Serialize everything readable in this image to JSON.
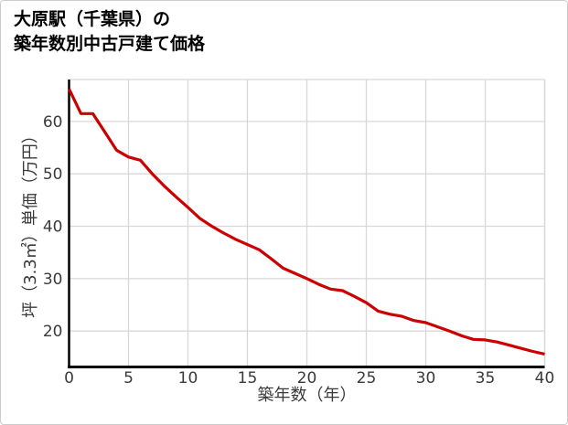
{
  "header": {
    "title_line1": "大原駅（千葉県）の",
    "title_line2": "築年数別中古戸建て価格"
  },
  "chart_data": {
    "type": "line",
    "title": "大原駅（千葉県）の築年数別中古戸建て価格",
    "xlabel": "築年数（年）",
    "ylabel": "坪（3.3㎡）単価（万円）",
    "x": [
      0,
      1,
      2,
      3,
      4,
      5,
      6,
      7,
      8,
      9,
      10,
      11,
      12,
      13,
      14,
      15,
      16,
      17,
      18,
      19,
      20,
      21,
      22,
      23,
      24,
      25,
      26,
      27,
      28,
      29,
      30,
      31,
      32,
      33,
      34,
      35,
      36,
      37,
      38,
      39,
      40
    ],
    "values": [
      66.2,
      61.5,
      61.5,
      58,
      54.5,
      53.2,
      52.6,
      50,
      47.7,
      45.6,
      43.6,
      41.5,
      40,
      38.7,
      37.5,
      36.5,
      35.5,
      33.8,
      32,
      31,
      30,
      28.9,
      28,
      27.7,
      26.6,
      25.4,
      23.8,
      23.2,
      22.8,
      22,
      21.6,
      20.8,
      20,
      19.1,
      18.4,
      18.3,
      17.9,
      17.3,
      16.7,
      16.1,
      15.6
    ],
    "x_ticks": [
      0,
      5,
      10,
      15,
      20,
      25,
      30,
      35,
      40
    ],
    "y_ticks": [
      20,
      30,
      40,
      50,
      60
    ],
    "xlim": [
      0,
      40
    ],
    "ylim": [
      13.4,
      68.0
    ],
    "grid": true,
    "legend": "none",
    "line_color": "#cc0000",
    "axis_color": "#000000",
    "grid_color": "#d8d8d8",
    "tick_label_color": "#3a3a3a",
    "axis_label_color": "#3a3a3a",
    "title_color": "#000000",
    "background_color": "#ffffff",
    "border_color": "#cccccc"
  }
}
